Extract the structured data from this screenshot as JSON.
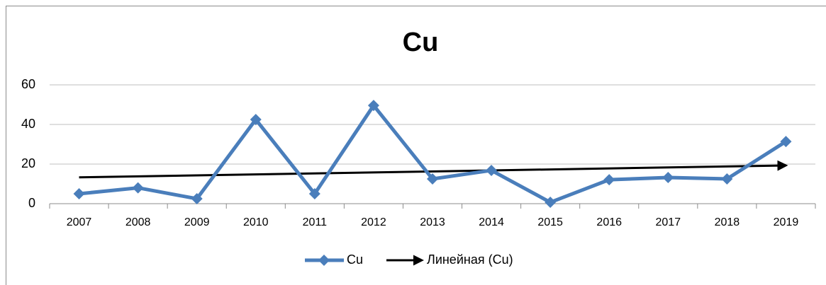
{
  "chart_data": {
    "type": "line",
    "title": "Cu",
    "categories": [
      "2007",
      "2008",
      "2009",
      "2010",
      "2011",
      "2012",
      "2013",
      "2014",
      "2015",
      "2016",
      "2017",
      "2018",
      "2019"
    ],
    "series": [
      {
        "name": "Cu",
        "color": "#4a7ebb",
        "values": [
          5,
          8,
          2.5,
          42.5,
          5,
          49.6,
          12.5,
          16.8,
          0.7,
          12.1,
          13.2,
          12.5,
          31.4
        ]
      }
    ],
    "trendline": {
      "name": "Линейная (Cu)",
      "color": "#000000",
      "kind": "linear"
    },
    "ylim": [
      0,
      60
    ],
    "yticks": [
      0,
      20,
      40,
      60
    ],
    "grid": true,
    "legend": "bottom"
  }
}
